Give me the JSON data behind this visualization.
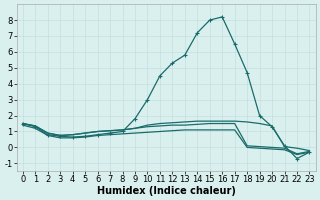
{
  "xlabel": "Humidex (Indice chaleur)",
  "bg_color": "#daf0ee",
  "line_color": "#1a6b6b",
  "grid_color": "#c5dedd",
  "xlim": [
    -0.5,
    23.5
  ],
  "ylim": [
    -1.5,
    9.0
  ],
  "xticks": [
    0,
    1,
    2,
    3,
    4,
    5,
    6,
    7,
    8,
    9,
    10,
    11,
    12,
    13,
    14,
    15,
    16,
    17,
    18,
    19,
    20,
    21,
    22,
    23
  ],
  "yticks": [
    -1,
    0,
    1,
    2,
    3,
    4,
    5,
    6,
    7,
    8
  ],
  "line_peak_x": [
    0,
    1,
    2,
    3,
    4,
    5,
    6,
    7,
    8,
    9,
    10,
    11,
    12,
    13,
    14,
    15,
    16,
    17,
    18,
    19,
    20,
    21,
    22,
    23
  ],
  "line_peak_y": [
    1.5,
    1.3,
    0.8,
    0.7,
    0.65,
    0.7,
    0.8,
    0.9,
    1.0,
    1.8,
    3.0,
    4.5,
    5.3,
    5.8,
    7.2,
    8.0,
    8.2,
    6.5,
    4.7,
    2.0,
    1.3,
    0.1,
    -0.7,
    -0.3
  ],
  "line_upper_x": [
    0,
    1,
    2,
    3,
    4,
    5,
    6,
    7,
    8,
    9,
    10,
    11,
    12,
    13,
    14,
    15,
    16,
    17,
    18,
    19,
    20,
    21,
    22,
    23
  ],
  "line_upper_y": [
    1.5,
    1.35,
    0.9,
    0.75,
    0.8,
    0.9,
    1.0,
    1.05,
    1.1,
    1.2,
    1.4,
    1.5,
    1.55,
    1.6,
    1.65,
    1.65,
    1.65,
    1.65,
    1.6,
    1.5,
    1.35,
    0.05,
    -0.05,
    -0.2
  ],
  "line_mid_x": [
    0,
    1,
    2,
    3,
    4,
    5,
    6,
    7,
    8,
    9,
    10,
    11,
    12,
    13,
    14,
    15,
    16,
    17,
    18,
    19,
    20,
    21,
    22,
    23
  ],
  "line_mid_y": [
    1.5,
    1.35,
    0.9,
    0.75,
    0.8,
    0.9,
    1.0,
    1.05,
    1.1,
    1.2,
    1.3,
    1.35,
    1.4,
    1.4,
    1.45,
    1.5,
    1.5,
    1.5,
    0.1,
    0.05,
    0.0,
    -0.05,
    -0.4,
    -0.25
  ],
  "line_lower_x": [
    0,
    1,
    2,
    3,
    4,
    5,
    6,
    7,
    8,
    9,
    10,
    11,
    12,
    13,
    14,
    15,
    16,
    17,
    18,
    19,
    20,
    21,
    22,
    23
  ],
  "line_lower_y": [
    1.4,
    1.2,
    0.75,
    0.6,
    0.6,
    0.65,
    0.75,
    0.8,
    0.85,
    0.9,
    0.95,
    1.0,
    1.05,
    1.1,
    1.1,
    1.1,
    1.1,
    1.1,
    0.0,
    -0.05,
    -0.1,
    -0.15,
    -0.45,
    -0.3
  ],
  "marker": "+",
  "markersize": 3,
  "linewidth": 0.9,
  "xlabel_fontsize": 7,
  "tick_fontsize": 6
}
